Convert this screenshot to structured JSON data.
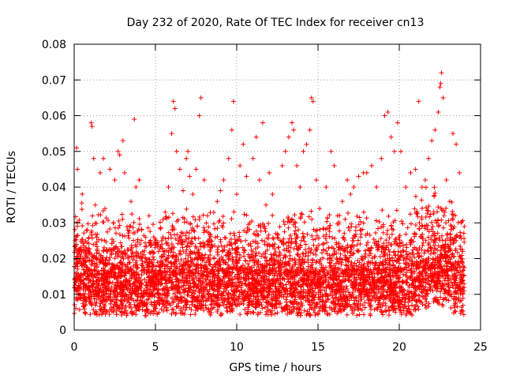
{
  "chart_data": {
    "type": "scatter",
    "title": "Day 232 of 2020, Rate Of TEC Index for receiver cn13",
    "xlabel": "GPS time / hours",
    "ylabel": "ROTI / TECUs",
    "xlim": [
      0,
      25
    ],
    "ylim": [
      0,
      0.08
    ],
    "x_ticks": [
      0,
      5,
      10,
      15,
      20,
      25
    ],
    "x_tick_labels": [
      "0",
      "5",
      "10",
      "15",
      "20",
      "25"
    ],
    "y_ticks": [
      0,
      0.01,
      0.02,
      0.03,
      0.04,
      0.05,
      0.06,
      0.07,
      0.08
    ],
    "y_tick_labels": [
      "0",
      "0.01",
      "0.02",
      "0.03",
      "0.04",
      "0.05",
      "0.06",
      "0.07",
      "0.08"
    ],
    "grid": true,
    "marker": "+",
    "color": "#ff0000",
    "series": [
      {
        "name": "ROTI",
        "points": [
          [
            0.05,
            0.012
          ],
          [
            0.1,
            0.02
          ],
          [
            0.15,
            0.051
          ],
          [
            0.2,
            0.045
          ],
          [
            0.3,
            0.022
          ],
          [
            0.35,
            0.012
          ],
          [
            0.5,
            0.018
          ],
          [
            0.6,
            0.01
          ],
          [
            0.8,
            0.028
          ],
          [
            0.9,
            0.015
          ],
          [
            1.05,
            0.058
          ],
          [
            1.1,
            0.057
          ],
          [
            1.2,
            0.048
          ],
          [
            1.3,
            0.035
          ],
          [
            1.4,
            0.02
          ],
          [
            1.6,
            0.044
          ],
          [
            1.8,
            0.048
          ],
          [
            1.9,
            0.034
          ],
          [
            2.0,
            0.022
          ],
          [
            2.2,
            0.045
          ],
          [
            2.4,
            0.03
          ],
          [
            2.5,
            0.042
          ],
          [
            2.7,
            0.05
          ],
          [
            2.8,
            0.049
          ],
          [
            3.0,
            0.053
          ],
          [
            3.1,
            0.044
          ],
          [
            3.3,
            0.028
          ],
          [
            3.5,
            0.036
          ],
          [
            3.7,
            0.059
          ],
          [
            3.8,
            0.04
          ],
          [
            4.0,
            0.042
          ],
          [
            4.2,
            0.018
          ],
          [
            4.4,
            0.026
          ],
          [
            4.6,
            0.032
          ],
          [
            4.8,
            0.022
          ],
          [
            5.0,
            0.014
          ],
          [
            5.2,
            0.018
          ],
          [
            5.4,
            0.024
          ],
          [
            5.6,
            0.033
          ],
          [
            5.8,
            0.04
          ],
          [
            6.0,
            0.055
          ],
          [
            6.1,
            0.064
          ],
          [
            6.2,
            0.062
          ],
          [
            6.3,
            0.05
          ],
          [
            6.5,
            0.045
          ],
          [
            6.7,
            0.039
          ],
          [
            6.9,
            0.048
          ],
          [
            7.0,
            0.05
          ],
          [
            7.1,
            0.043
          ],
          [
            7.3,
            0.038
          ],
          [
            7.5,
            0.045
          ],
          [
            7.7,
            0.06
          ],
          [
            7.8,
            0.065
          ],
          [
            8.0,
            0.042
          ],
          [
            8.2,
            0.032
          ],
          [
            8.4,
            0.025
          ],
          [
            8.6,
            0.02
          ],
          [
            8.8,
            0.036
          ],
          [
            9.0,
            0.039
          ],
          [
            9.2,
            0.042
          ],
          [
            9.5,
            0.048
          ],
          [
            9.7,
            0.056
          ],
          [
            9.8,
            0.064
          ],
          [
            10.0,
            0.038
          ],
          [
            10.2,
            0.046
          ],
          [
            10.4,
            0.052
          ],
          [
            10.6,
            0.043
          ],
          [
            10.8,
            0.03
          ],
          [
            11.0,
            0.048
          ],
          [
            11.2,
            0.054
          ],
          [
            11.4,
            0.042
          ],
          [
            11.6,
            0.058
          ],
          [
            11.8,
            0.035
          ],
          [
            12.0,
            0.044
          ],
          [
            12.2,
            0.038
          ],
          [
            12.5,
            0.026
          ],
          [
            12.8,
            0.046
          ],
          [
            13.0,
            0.05
          ],
          [
            13.2,
            0.054
          ],
          [
            13.4,
            0.058
          ],
          [
            13.5,
            0.056
          ],
          [
            13.7,
            0.046
          ],
          [
            13.9,
            0.04
          ],
          [
            14.1,
            0.05
          ],
          [
            14.3,
            0.052
          ],
          [
            14.5,
            0.056
          ],
          [
            14.6,
            0.065
          ],
          [
            14.7,
            0.064
          ],
          [
            14.9,
            0.042
          ],
          [
            15.1,
            0.034
          ],
          [
            15.3,
            0.024
          ],
          [
            15.5,
            0.04
          ],
          [
            15.8,
            0.05
          ],
          [
            16.0,
            0.046
          ],
          [
            16.2,
            0.032
          ],
          [
            16.5,
            0.036
          ],
          [
            16.8,
            0.042
          ],
          [
            17.0,
            0.038
          ],
          [
            17.2,
            0.04
          ],
          [
            17.5,
            0.043
          ],
          [
            17.8,
            0.044
          ],
          [
            18.0,
            0.044
          ],
          [
            18.3,
            0.046
          ],
          [
            18.6,
            0.04
          ],
          [
            18.9,
            0.048
          ],
          [
            19.1,
            0.06
          ],
          [
            19.3,
            0.061
          ],
          [
            19.5,
            0.054
          ],
          [
            19.7,
            0.05
          ],
          [
            19.9,
            0.058
          ],
          [
            20.1,
            0.05
          ],
          [
            20.4,
            0.04
          ],
          [
            20.7,
            0.044
          ],
          [
            21.0,
            0.045
          ],
          [
            21.2,
            0.064
          ],
          [
            21.4,
            0.04
          ],
          [
            21.6,
            0.042
          ],
          [
            21.8,
            0.048
          ],
          [
            22.0,
            0.053
          ],
          [
            22.2,
            0.056
          ],
          [
            22.4,
            0.061
          ],
          [
            22.5,
            0.068
          ],
          [
            22.55,
            0.069
          ],
          [
            22.6,
            0.072
          ],
          [
            22.7,
            0.065
          ],
          [
            22.9,
            0.042
          ],
          [
            23.1,
            0.036
          ],
          [
            23.3,
            0.055
          ],
          [
            23.5,
            0.052
          ],
          [
            23.7,
            0.044
          ],
          [
            23.8,
            0.03
          ],
          [
            23.9,
            0.022
          ]
        ]
      }
    ]
  }
}
